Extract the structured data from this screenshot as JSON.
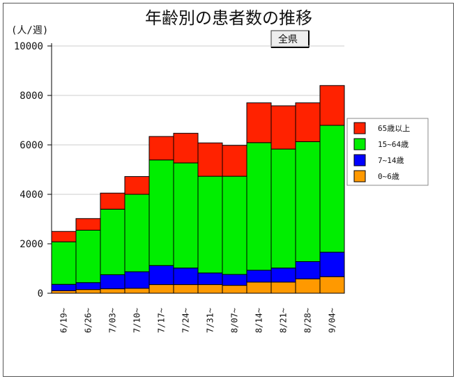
{
  "chart_data": {
    "type": "bar",
    "stacked": true,
    "title": "年齢別の患者数の推移",
    "ylabel": "(人/週)",
    "ylim": [
      0,
      10000
    ],
    "yticks": [
      "0",
      "2000",
      "4000",
      "6000",
      "8000",
      "10000"
    ],
    "grid": true,
    "legend_position": "right",
    "categories": [
      "6/19~",
      "6/26~",
      "7/03~",
      "7/10~",
      "7/17~",
      "7/24~",
      "7/31~",
      "8/07~",
      "8/14~",
      "8/21~",
      "8/28~",
      "9/04~"
    ],
    "series": [
      {
        "name": "0~6歳",
        "color": "#ff9900",
        "values": [
          100,
          150,
          180,
          200,
          350,
          350,
          350,
          320,
          450,
          450,
          580,
          670
        ]
      },
      {
        "name": "7~14歳",
        "color": "#0000ff",
        "values": [
          260,
          280,
          570,
          670,
          770,
          670,
          470,
          440,
          480,
          570,
          700,
          990
        ]
      },
      {
        "name": "15~64歳",
        "color": "#00ee00",
        "values": [
          1720,
          2120,
          2650,
          3130,
          4270,
          4250,
          3910,
          3970,
          5160,
          4810,
          4850,
          5130
        ]
      },
      {
        "name": "65歳以上",
        "color": "#ff2200",
        "values": [
          420,
          470,
          650,
          720,
          950,
          1200,
          1350,
          1250,
          1610,
          1750,
          1570,
          1610
        ]
      }
    ],
    "legend_order": [
      "65歳以上",
      "15~64歳",
      "7~14歳",
      "0~6歳"
    ]
  },
  "region_button": {
    "label": "全県"
  }
}
